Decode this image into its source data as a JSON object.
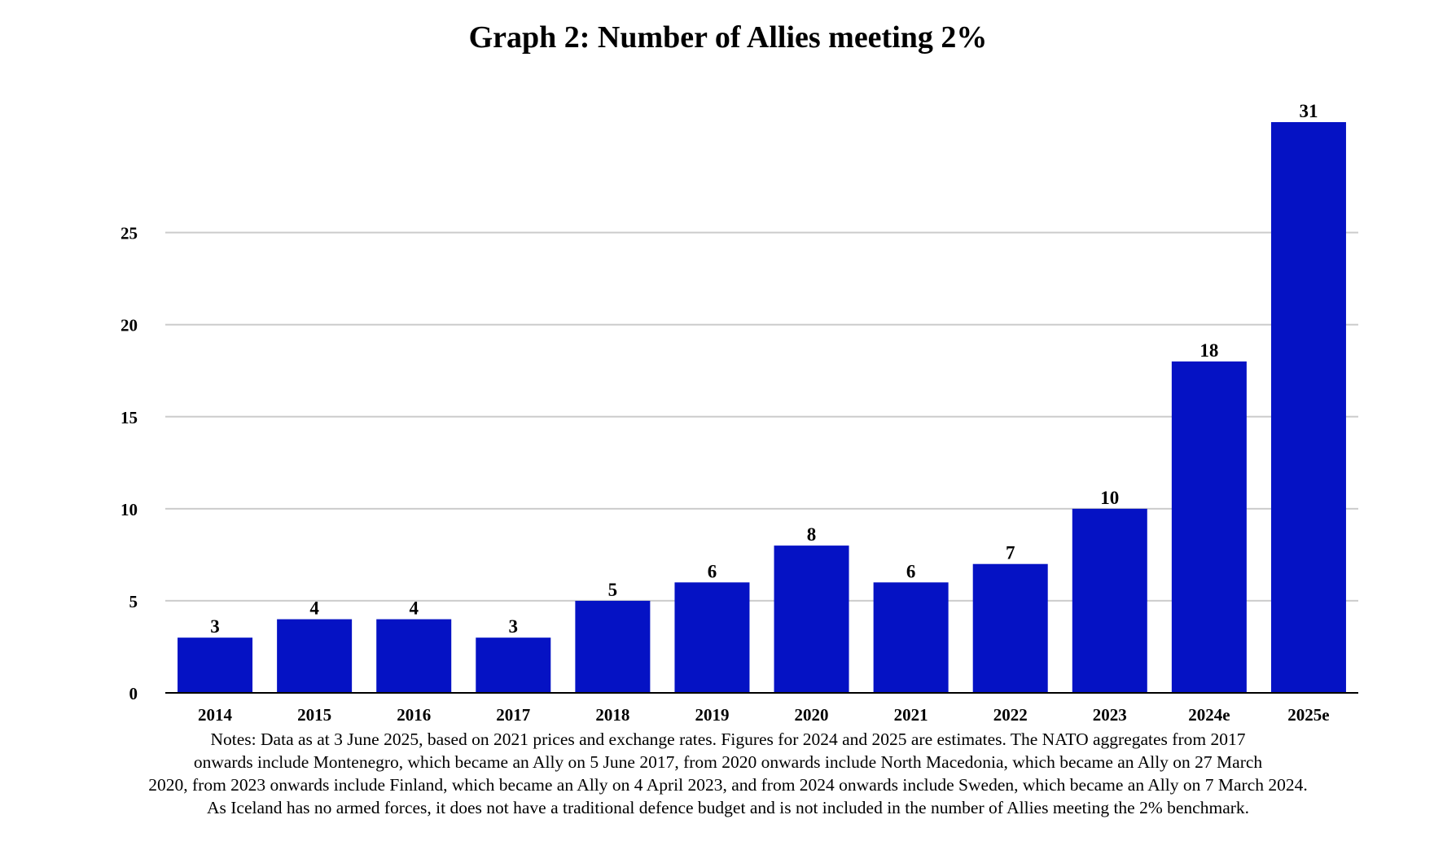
{
  "chart_data": {
    "type": "bar",
    "title": "Graph 2: Number of  Allies meeting 2%",
    "xlabel": "",
    "ylabel": "",
    "categories": [
      "2014",
      "2015",
      "2016",
      "2017",
      "2018",
      "2019",
      "2020",
      "2021",
      "2022",
      "2023",
      "2024e",
      "2025e"
    ],
    "values": [
      3,
      4,
      4,
      3,
      5,
      6,
      8,
      6,
      7,
      10,
      18,
      31
    ],
    "data_labels": [
      "3",
      "4",
      "4",
      "3",
      "5",
      "6",
      "8",
      "6",
      "7",
      "10",
      "18",
      "31"
    ],
    "yticks": [
      "0",
      "5",
      "10",
      "15",
      "20",
      "25"
    ],
    "ytick_values": [
      0,
      5,
      10,
      15,
      20,
      25
    ],
    "ylim": [
      0,
      31
    ],
    "grid": true,
    "legend": "none",
    "colors": {
      "bar": "#0512c4",
      "grid": "#cccccc",
      "axis": "#000000"
    }
  },
  "notes": [
    "Notes: Data as at 3 June 2025, based on 2021 prices and exchange rates. Figures for 2024 and 2025 are estimates. The NATO aggregates from 2017",
    "onwards include Montenegro, which became an Ally on 5 June 2017, from 2020 onwards include North Macedonia, which became an Ally on 27 March",
    "2020, from 2023 onwards include Finland, which became an Ally on 4 April 2023, and from 2024 onwards include Sweden, which became an Ally on 7 March 2024.",
    "As Iceland has no armed forces, it does not have a traditional defence budget and is not included in the number of  Allies meeting the 2% benchmark."
  ]
}
